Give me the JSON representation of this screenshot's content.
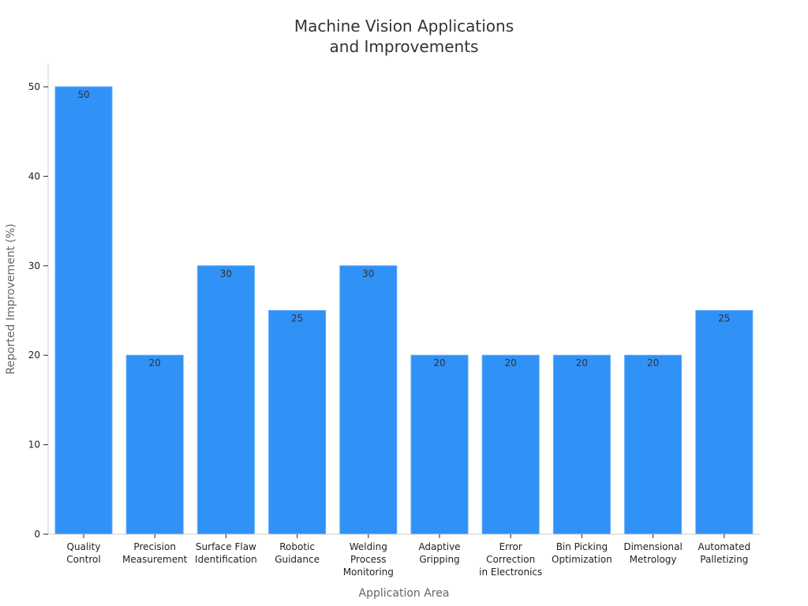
{
  "chart_data": {
    "type": "bar",
    "title_lines": [
      "Machine Vision Applications",
      "and Improvements"
    ],
    "xlabel": "Application Area",
    "ylabel": "Reported Improvement (%)",
    "ylim": [
      0,
      52
    ],
    "yticks": [
      0,
      10,
      20,
      30,
      40,
      50
    ],
    "grid": false,
    "categories": [
      [
        "Quality",
        "Control"
      ],
      [
        "Precision",
        "Measurement"
      ],
      [
        "Surface Flaw",
        "Identification"
      ],
      [
        "Robotic",
        "Guidance"
      ],
      [
        "Welding",
        "Process",
        "Monitoring"
      ],
      [
        "Adaptive",
        "Gripping"
      ],
      [
        "Error",
        "Correction",
        "in Electronics"
      ],
      [
        "Bin Picking",
        "Optimization"
      ],
      [
        "Dimensional",
        "Metrology"
      ],
      [
        "Automated",
        "Palletizing"
      ]
    ],
    "values": [
      50,
      20,
      30,
      25,
      30,
      20,
      20,
      20,
      20,
      25
    ],
    "bar_color": "#3091f7",
    "bar_edge_color": "#5aaaf9"
  }
}
